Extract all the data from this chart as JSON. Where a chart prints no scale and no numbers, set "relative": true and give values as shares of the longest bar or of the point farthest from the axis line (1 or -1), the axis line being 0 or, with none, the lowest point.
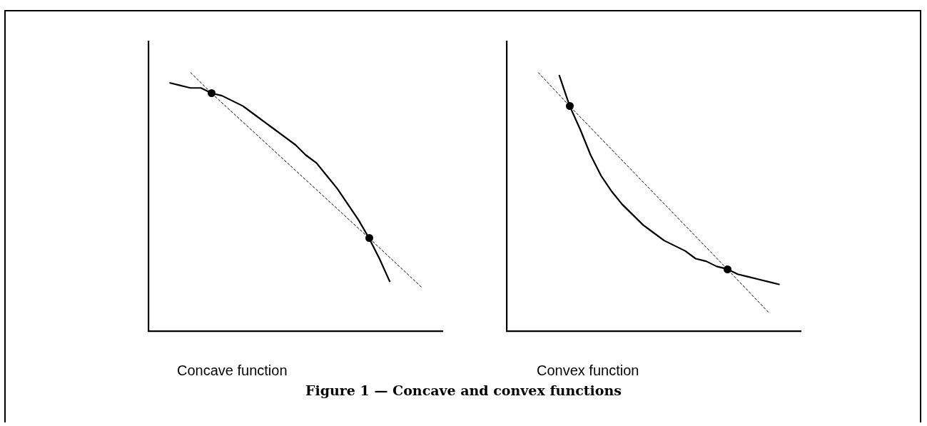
{
  "chart_data": [
    {
      "type": "line",
      "relative": true,
      "xlabel": "Concave function",
      "tick_labels": false,
      "grid": false,
      "legend": false,
      "categories": [
        null,
        null,
        null,
        null,
        null,
        null,
        null,
        null,
        null,
        null,
        null,
        null,
        null,
        null,
        null,
        null,
        null,
        null,
        null,
        null,
        null,
        null,
        null,
        null,
        null,
        null,
        null,
        null,
        null
      ],
      "series": [
        {
          "color": "#000000",
          "line_style": "solid",
          "values": [
            null,
            null,
            0.96,
            0.95,
            0.94,
            0.94,
            0.92,
            0.91,
            0.89,
            0.87,
            0.84,
            0.81,
            0.78,
            0.75,
            0.72,
            0.68,
            0.65,
            0.6,
            0.55,
            0.49,
            0.43,
            0.36,
            0.28,
            0.19,
            null,
            null,
            null,
            null,
            null
          ]
        },
        {
          "color": "#000000",
          "line_style": "dashed",
          "values": [
            null,
            null,
            null,
            null,
            1,
            null,
            0.92,
            null,
            null,
            null,
            null,
            null,
            null,
            null,
            null,
            null,
            null,
            null,
            null,
            null,
            null,
            0.36,
            null,
            null,
            null,
            null,
            0.17,
            null,
            null
          ]
        }
      ],
      "annotations": [
        "Figure 1 — Concave and convex functions"
      ]
    },
    {
      "type": "line",
      "relative": true,
      "xlabel": "Convex function",
      "tick_labels": false,
      "grid": false,
      "legend": false,
      "categories": [
        null,
        null,
        null,
        null,
        null,
        null,
        null,
        null,
        null,
        null,
        null,
        null,
        null,
        null,
        null,
        null,
        null,
        null,
        null,
        null,
        null,
        null,
        null,
        null,
        null,
        null,
        null,
        null,
        null
      ],
      "series": [
        {
          "color": "#000000",
          "line_style": "solid",
          "values": [
            null,
            null,
            null,
            null,
            null,
            0.99,
            0.87,
            0.78,
            0.68,
            0.6,
            0.54,
            0.49,
            0.45,
            0.41,
            0.38,
            0.35,
            0.33,
            0.31,
            0.28,
            0.27,
            0.25,
            0.24,
            0.22,
            0.21,
            0.2,
            0.19,
            0.18,
            null,
            null
          ]
        },
        {
          "color": "#000000",
          "line_style": "dashed",
          "values": [
            null,
            null,
            null,
            1,
            null,
            null,
            0.87,
            null,
            null,
            null,
            null,
            null,
            null,
            null,
            null,
            null,
            null,
            null,
            null,
            null,
            null,
            0.24,
            null,
            null,
            null,
            0.07,
            null,
            null,
            null
          ]
        }
      ]
    }
  ]
}
